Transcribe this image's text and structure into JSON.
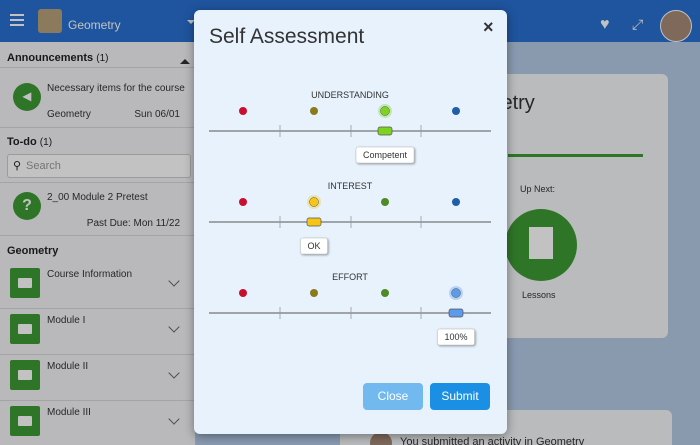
{
  "topbar": {
    "course": "Geometry"
  },
  "sidebar": {
    "announcements": {
      "title": "Announcements",
      "count": "(1)",
      "items": [
        {
          "text": "Necessary items for the course",
          "course": "Geometry",
          "date": "Sun 06/01"
        }
      ]
    },
    "todo": {
      "title": "To-do",
      "count": "(1)",
      "search_placeholder": "Search",
      "items": [
        {
          "text": "2_00 Module 2 Pretest",
          "due": "Past Due: Mon 11/22"
        }
      ]
    },
    "course": {
      "title": "Geometry",
      "modules": [
        "Course Information",
        "Module I",
        "Module II",
        "Module III"
      ]
    }
  },
  "main": {
    "card_title": "Geometry",
    "up_next": "Up Next:",
    "next_item": "Lessons",
    "activity": "You submitted an activity in Geometry"
  },
  "modal": {
    "title": "Self Assessment",
    "close_icon": "×",
    "sliders": [
      {
        "label": "UNDERSTANDING",
        "selected": 3,
        "value_label": "Competent",
        "color": "#7ed321"
      },
      {
        "label": "INTEREST",
        "selected": 2,
        "value_label": "OK",
        "color": "#f5c518"
      },
      {
        "label": "EFFORT",
        "selected": 4,
        "value_label": "100%",
        "color": "#5b9bea"
      }
    ],
    "buttons": {
      "close": "Close",
      "submit": "Submit"
    }
  }
}
